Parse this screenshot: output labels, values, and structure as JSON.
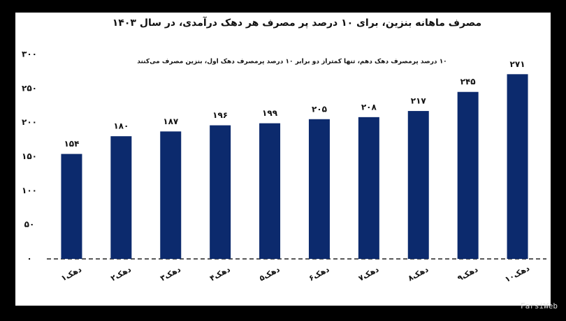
{
  "chart_data": {
    "type": "bar",
    "title": "مصرف ماهانه بنزین، برای ۱۰ درصد پر مصرف هر دهک درآمدی، در سال ۱۴۰۳",
    "subtitle": "۱۰ درصد پرمصرف دهک دهم، تنها کمتراز دو برابر ۱۰ درصد پرمصرف دهک اول، بنزین مصرف می‌کنند",
    "categories": [
      "دهک۱",
      "دهک۲",
      "دهک۳",
      "دهک۴",
      "دهک۵",
      "دهک۶",
      "دهک۷",
      "دهک۸",
      "دهک۹",
      "دهک۱۰"
    ],
    "values": [
      154,
      180,
      187,
      196,
      199,
      205,
      208,
      217,
      245,
      271
    ],
    "value_labels": [
      "۱۵۴",
      "۱۸۰",
      "۱۸۷",
      "۱۹۶",
      "۱۹۹",
      "۲۰۵",
      "۲۰۸",
      "۲۱۷",
      "۲۴۵",
      "۲۷۱"
    ],
    "color": "#0c2a6d",
    "ylim": [
      0,
      300
    ],
    "yticks": [
      {
        "value": 0,
        "label": "۰"
      },
      {
        "value": 50,
        "label": "۵۰"
      },
      {
        "value": 100,
        "label": "۱۰۰"
      },
      {
        "value": 150,
        "label": "۱۵۰"
      },
      {
        "value": 200,
        "label": "۲۰۰"
      },
      {
        "value": 250,
        "label": "۲۵۰"
      },
      {
        "value": 300,
        "label": "۳۰۰"
      }
    ],
    "grid": false,
    "watermark": "FarsiWeb"
  }
}
